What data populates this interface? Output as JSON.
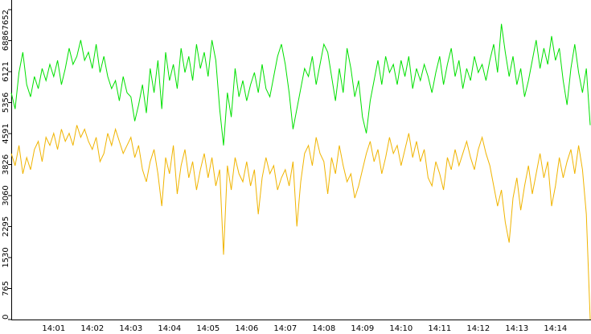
{
  "chart_data": {
    "type": "line",
    "categories": [
      null,
      null,
      null,
      null,
      null,
      null,
      null,
      null,
      null,
      null,
      null,
      "14:01",
      null,
      null,
      null,
      null,
      null,
      null,
      null,
      null,
      null,
      "14:02",
      null,
      null,
      null,
      null,
      null,
      null,
      null,
      null,
      null,
      "14:03",
      null,
      null,
      null,
      null,
      null,
      null,
      null,
      null,
      null,
      "14:04",
      null,
      null,
      null,
      null,
      null,
      null,
      null,
      null,
      null,
      "14:05",
      null,
      null,
      null,
      null,
      null,
      null,
      null,
      null,
      null,
      "14:06",
      null,
      null,
      null,
      null,
      null,
      null,
      null,
      null,
      null,
      "14:07",
      null,
      null,
      null,
      null,
      null,
      null,
      null,
      null,
      null,
      "14:08",
      null,
      null,
      null,
      null,
      null,
      null,
      null,
      null,
      null,
      "14:09",
      null,
      null,
      null,
      null,
      null,
      null,
      null,
      null,
      null,
      "14:10",
      null,
      null,
      null,
      null,
      null,
      null,
      null,
      null,
      null,
      "14:11",
      null,
      null,
      null,
      null,
      null,
      null,
      null,
      null,
      null,
      "14:12",
      null,
      null,
      null,
      null,
      null,
      null,
      null,
      null,
      null,
      "14:13",
      null,
      null,
      null,
      null,
      null,
      null,
      null,
      null,
      null,
      "14:14",
      null,
      null,
      null,
      null,
      null,
      null,
      null,
      null,
      null
    ],
    "series": [
      {
        "color": "#00e000",
        "values": [
          5600,
          5200,
          6100,
          6600,
          5800,
          5500,
          6000,
          5700,
          6200,
          5900,
          6300,
          6000,
          6400,
          5800,
          6200,
          6700,
          6300,
          6500,
          6900,
          6400,
          6600,
          6200,
          6800,
          6100,
          6500,
          6000,
          5700,
          5900,
          5400,
          6000,
          5600,
          5500,
          4900,
          5300,
          5800,
          5100,
          6200,
          5600,
          6400,
          5200,
          6600,
          5900,
          6300,
          5700,
          6700,
          6100,
          6500,
          5900,
          6800,
          6200,
          6600,
          6000,
          6900,
          6400,
          5200,
          4300,
          5600,
          5000,
          6200,
          5500,
          5900,
          5400,
          5800,
          6100,
          5600,
          6300,
          5700,
          5500,
          6000,
          6500,
          6800,
          6300,
          5600,
          4700,
          5200,
          5700,
          6200,
          6000,
          6500,
          5800,
          6300,
          6800,
          6600,
          6000,
          5400,
          6200,
          5600,
          6700,
          6200,
          5500,
          5900,
          5000,
          4600,
          5400,
          5900,
          6400,
          5800,
          6500,
          6100,
          6300,
          5800,
          6400,
          6000,
          6500,
          5700,
          6200,
          5900,
          6300,
          6000,
          5600,
          6100,
          6500,
          5800,
          6300,
          6700,
          6000,
          6400,
          5700,
          6200,
          5900,
          6500,
          6100,
          6300,
          5900,
          6400,
          6800,
          6100,
          7300,
          6600,
          6000,
          6500,
          5800,
          6200,
          5500,
          5900,
          6400,
          6900,
          6200,
          6700,
          6300,
          7000,
          6400,
          6700,
          5900,
          5300,
          6200,
          6800,
          6100,
          5600,
          6200,
          4800
        ]
      },
      {
        "color": "#f0b400",
        "values": [
          4100,
          3800,
          4300,
          3600,
          4000,
          3700,
          4200,
          4400,
          3900,
          4500,
          4300,
          4600,
          4200,
          4700,
          4400,
          4600,
          4300,
          4800,
          4500,
          4700,
          4400,
          4200,
          4500,
          3900,
          4100,
          4600,
          4300,
          4700,
          4400,
          4100,
          4300,
          4500,
          4000,
          4300,
          3700,
          3400,
          3900,
          4200,
          3600,
          2800,
          4000,
          3600,
          4300,
          3100,
          3800,
          4200,
          3500,
          3900,
          3200,
          3700,
          4100,
          3500,
          4000,
          3300,
          3700,
          1600,
          3800,
          3200,
          4000,
          3600,
          3400,
          3900,
          3300,
          3700,
          2600,
          3500,
          4000,
          3600,
          3800,
          3200,
          3500,
          3700,
          3300,
          3900,
          2300,
          3400,
          4100,
          4300,
          3800,
          4500,
          4100,
          3900,
          3100,
          4000,
          3600,
          4300,
          3800,
          3400,
          3600,
          3000,
          3300,
          3700,
          4100,
          4400,
          3900,
          4200,
          3600,
          4000,
          4500,
          4100,
          4300,
          3800,
          4200,
          4600,
          4000,
          4400,
          3900,
          4200,
          3500,
          3300,
          3900,
          3600,
          3200,
          4000,
          3700,
          4200,
          3800,
          4100,
          4400,
          4000,
          3700,
          4200,
          4500,
          4100,
          3800,
          3300,
          2800,
          3200,
          2400,
          1900,
          3000,
          3500,
          2700,
          3300,
          3800,
          3100,
          3600,
          4100,
          3500,
          3900,
          2800,
          3300,
          4000,
          3500,
          3900,
          4200,
          3600,
          4300,
          3700,
          2600,
          0
        ]
      }
    ],
    "ylim": [
      0,
      7652
    ],
    "yticks": [
      0,
      765,
      1530,
      2295,
      3060,
      3826,
      4591,
      5356,
      6121,
      6886,
      7652
    ]
  }
}
